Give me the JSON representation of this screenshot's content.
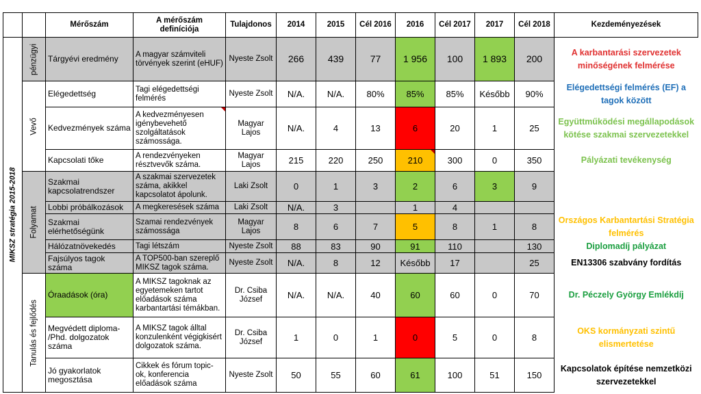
{
  "headers": {
    "metric": "Mérőszám",
    "definition": "A mérőszám definíciója",
    "owner": "Tulajdonos",
    "y2014": "2014",
    "y2015": "2015",
    "goal2016": "Cél 2016",
    "y2016": "2016",
    "goal2017": "Cél 2017",
    "y2017": "2017",
    "goal2018": "Cél 2018",
    "initiatives": "Kezdeményezések"
  },
  "strategy_label": "MIKSZ stratégia 2015-2018",
  "groups": {
    "finance": "pénzügyi",
    "customer": "Vevő",
    "process": "Folyamat",
    "learning": "Tanulás és fejlődés"
  },
  "rows": [
    {
      "name": "Tárgyévi eredmény",
      "def": "A magyar számviteli törvények szerint (eHUF)",
      "owner": "Nyeste Zsolt",
      "v2014": "266",
      "v2015": "439",
      "g2016": "77",
      "v2016": "1 956",
      "g2017": "100",
      "v2017": "1 893",
      "g2018": "200"
    },
    {
      "name": "Elégedettség",
      "def": "Tagi elégedettségi felmérés",
      "owner": "Nyeste Zsolt",
      "v2014": "N/A.",
      "v2015": "N/A.",
      "g2016": "80%",
      "v2016": "85%",
      "g2017": "85%",
      "v2017": "Később",
      "g2018": "90%"
    },
    {
      "name": "Kedvezmények száma",
      "def": "A kedvezményesen igénybevehető szolgáltatások számossága.",
      "owner": "Magyar Lajos",
      "v2014": "N/A.",
      "v2015": "4",
      "g2016": "13",
      "v2016": "6",
      "g2017": "20",
      "v2017": "1",
      "g2018": "25"
    },
    {
      "name": "Kapcsolati tőke",
      "def": "A rendezvényeken résztvevők száma.",
      "owner": "Magyar Lajos",
      "v2014": "215",
      "v2015": "220",
      "g2016": "250",
      "v2016": "210",
      "g2017": "300",
      "v2017": "0",
      "g2018": "350"
    },
    {
      "name": "Szakmai kapcsolatrendszer",
      "def": "A szakmai szervezetek száma, akikkel kapcsolatot ápolunk.",
      "owner": "Laki Zsolt",
      "v2014": "0",
      "v2015": "1",
      "g2016": "3",
      "v2016": "2",
      "g2017": "6",
      "v2017": "3",
      "g2018": "9"
    },
    {
      "name": "Lobbi próbálkozások",
      "def": "A megkeresések száma",
      "owner": "Laki Zsolt",
      "v2014": "N/A.",
      "v2015": "3",
      "g2016": "",
      "v2016": "1",
      "g2017": "4",
      "v2017": "",
      "g2018": ""
    },
    {
      "name": "Szakmai elérhetőségünk",
      "def": "Szamai rendezvények számossága",
      "owner": "Magyar Lajos",
      "v2014": "8",
      "v2015": "6",
      "g2016": "7",
      "v2016": "5",
      "g2017": "8",
      "v2017": "1",
      "g2018": "8"
    },
    {
      "name": "Hálózatnövekedés",
      "def": "Tagi létszám",
      "owner": "Nyeste Zsolt",
      "v2014": "88",
      "v2015": "83",
      "g2016": "90",
      "v2016": "91",
      "g2017": "110",
      "v2017": "",
      "g2018": "130"
    },
    {
      "name": "Fajsúlyos tagok száma",
      "def": "A TOP500-ban szereplő MIKSZ tagok száma.",
      "owner": "Nyeste Zsolt",
      "v2014": "N/A.",
      "v2015": "8",
      "g2016": "12",
      "v2016": "Később",
      "g2017": "17",
      "v2017": "",
      "g2018": "25"
    },
    {
      "name": "Óraadások (óra)",
      "def": "A MIKSZ tagoknak az egyetemeken tartot előadások száma karbantartási témákban.",
      "owner": "Dr. Csiba József",
      "v2014": "N/A.",
      "v2015": "N/A.",
      "g2016": "40",
      "v2016": "60",
      "g2017": "60",
      "v2017": "0",
      "g2018": "70"
    },
    {
      "name": "Megvédett diploma- /Phd. dolgozatok száma",
      "def": "A MIKSZ tagok álltal konzulenként végigkisért dolgozatok száma.",
      "owner": "Dr. Csiba József",
      "v2014": "1",
      "v2015": "0",
      "g2016": "1",
      "v2016": "0",
      "g2017": "5",
      "v2017": "0",
      "g2018": "8"
    },
    {
      "name": "Jó gyakorlatok megosztása",
      "def": "Cikkek és fórum topic-ok, konferencia előadások száma",
      "owner": "Nyeste Zsolt",
      "v2014": "50",
      "v2015": "55",
      "g2016": "60",
      "v2016": "61",
      "g2017": "100",
      "v2017": "51",
      "g2018": "150"
    }
  ],
  "initiatives": [
    {
      "text": "A karbantarási szervezetek minőségének felmérése",
      "color": "#e03030"
    },
    {
      "text": "Elégedettségi felmérés (EF) a tagok között",
      "color": "#1f6fb8"
    },
    {
      "text": "Együttműködési megállapodások kötése szakmai szervezetekkel",
      "color": "#7cc24e"
    },
    {
      "text": "Pályázati tevékenység",
      "color": "#7cc24e"
    },
    {
      "text": "Országos Karbantartási Stratégia felmérés",
      "color": "#ffc000"
    },
    {
      "text": "Diplomadíj pályázat",
      "color": "#1a9e3f"
    },
    {
      "text": "EN13306 szabvány fordítás",
      "color": "#000000"
    },
    {
      "text": "Dr. Péczely György Emlékdíj",
      "color": "#1a9e3f"
    },
    {
      "text": "OKS kormányzati szintű elismertetése",
      "color": "#ffc000"
    },
    {
      "text": "Kapcsolatok építése nemzetközi szervezetekkel",
      "color": "#000000"
    }
  ],
  "cell_colors": {
    "gray": "#c8c8c8",
    "green": "#92d050",
    "red": "#ff0000",
    "orange": "#ffc000"
  }
}
